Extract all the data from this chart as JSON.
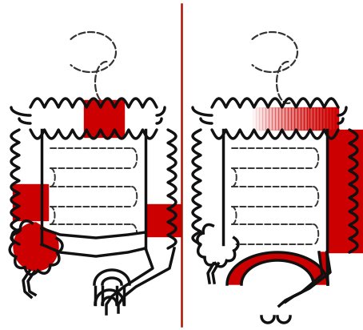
{
  "background": "#ffffff",
  "red": "#cc0000",
  "black": "#111111",
  "dash_color": "#333333",
  "divider_color": "#aa1100",
  "figsize": [
    4.54,
    4.12
  ],
  "dpi": 100,
  "lw": 2.5,
  "lw_dash": 1.4
}
